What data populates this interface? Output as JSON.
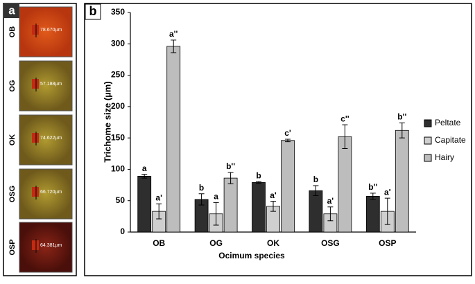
{
  "panel_a": {
    "label": "a",
    "images": [
      {
        "name": "OB",
        "scale": "78.670µm"
      },
      {
        "name": "OG",
        "scale": "57.188µm"
      },
      {
        "name": "OK",
        "scale": "74.622µm"
      },
      {
        "name": "OSG",
        "scale": "66.720µm"
      },
      {
        "name": "OSP",
        "scale": "64.381µm"
      }
    ]
  },
  "chart_data": {
    "type": "bar",
    "panel_label": "b",
    "x_label": "Ocimum species",
    "y_label": "Trichome size (µm)",
    "categories": [
      "OB",
      "OG",
      "OK",
      "OSG",
      "OSP"
    ],
    "series": [
      {
        "name": "Peltate",
        "color": "#2e2e2e",
        "values": [
          89,
          52,
          79,
          66,
          57
        ],
        "errors": [
          3,
          9,
          1.5,
          8,
          5
        ],
        "letters": [
          "a",
          "b",
          "b",
          "b",
          "b''"
        ]
      },
      {
        "name": "Capitate",
        "color": "#cfcfcf",
        "values": [
          33,
          29,
          41,
          29,
          33
        ],
        "errors": [
          12,
          18,
          8,
          11,
          21
        ],
        "letters": [
          "a'",
          "a",
          "a'",
          "a'",
          "a'"
        ]
      },
      {
        "name": "Hairy",
        "color": "#bdbdbd",
        "values": [
          296,
          86,
          146,
          152,
          162
        ],
        "errors": [
          10,
          9,
          2,
          19,
          12
        ],
        "letters": [
          "a''",
          "b''",
          "c'",
          "c''",
          "b''"
        ]
      }
    ],
    "ylim": [
      0,
      350
    ],
    "yticks": [
      0,
      50,
      100,
      150,
      200,
      250,
      300,
      350
    ],
    "grid": false,
    "legend": "right"
  }
}
